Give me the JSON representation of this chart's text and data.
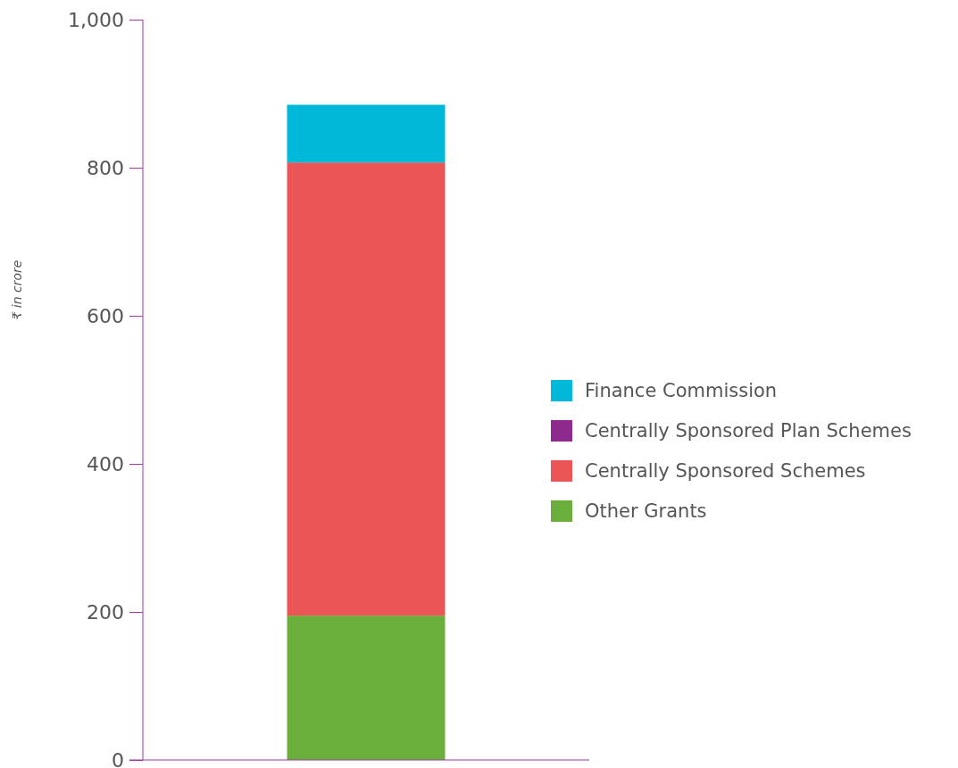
{
  "chart_data": {
    "type": "bar",
    "stacked": true,
    "ylabel": "₹ in crore",
    "categories": [
      null
    ],
    "series": [
      {
        "name": "Other Grants",
        "color": "#6aae3c",
        "values": [
          195
        ]
      },
      {
        "name": "Centrally Sponsored Schemes",
        "color": "#ec5555",
        "values": [
          612
        ]
      },
      {
        "name": "Centrally Sponsored Plan Schemes",
        "color": "#8e2a8e",
        "values": [
          0
        ]
      },
      {
        "name": "Finance Commission",
        "color": "#00b8d8",
        "values": [
          78
        ]
      }
    ],
    "ylim": [
      0,
      1000
    ],
    "yticks": [
      0,
      200,
      400,
      600,
      800,
      {
        "value": 1000,
        "label": "1,000"
      }
    ],
    "grid": false,
    "legend": "right"
  }
}
